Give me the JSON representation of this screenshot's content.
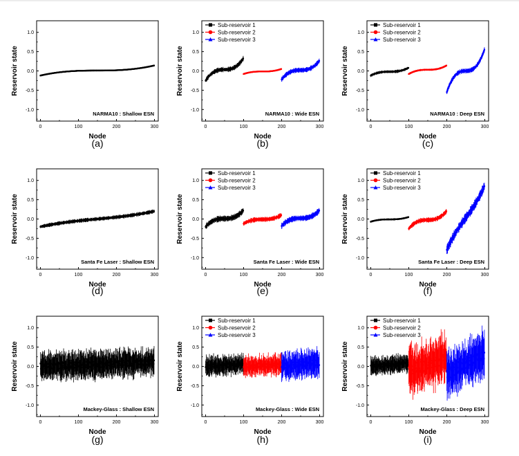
{
  "chart_data": [
    {
      "panel": "(a)",
      "type": "scatter",
      "title": "NARMA10 : Shallow ESN",
      "xlabel": "Node",
      "ylabel": "Reservoir state",
      "xlim": [
        -10,
        310
      ],
      "ylim": [
        -1.3,
        1.3
      ],
      "xticks": [
        0,
        100,
        200,
        300
      ],
      "yticks": [
        1.0,
        0.5,
        0.0,
        -0.5,
        -1.0
      ],
      "legend": [],
      "series": [
        {
          "name": "",
          "color": "#000000",
          "x_range": [
            0,
            299
          ],
          "y_start": -0.12,
          "y_end": 0.14,
          "curve": 1.0,
          "error": 0.015
        }
      ]
    },
    {
      "panel": "(b)",
      "type": "scatter",
      "title": "NARMA10 : Wide ESN",
      "xlabel": "Node",
      "ylabel": "Reservoir state",
      "xlim": [
        -10,
        310
      ],
      "ylim": [
        -1.3,
        1.3
      ],
      "xticks": [
        0,
        100,
        200,
        300
      ],
      "yticks": [
        1.0,
        0.5,
        0.0,
        -0.5,
        -1.0
      ],
      "legend": [
        "Sub-reservoir 1",
        "Sub-reservoir 2",
        "Sub-reservoir 3"
      ],
      "series": [
        {
          "name": "Sub-reservoir 1",
          "color": "#000000",
          "x_range": [
            0,
            99
          ],
          "y_start": -0.25,
          "y_end": 0.32,
          "curve": 1.0,
          "error": 0.05
        },
        {
          "name": "Sub-reservoir 2",
          "color": "#ff0000",
          "x_range": [
            100,
            199
          ],
          "y_start": -0.08,
          "y_end": 0.05,
          "curve": 1.0,
          "error": 0.015
        },
        {
          "name": "Sub-reservoir 3",
          "color": "#0000ff",
          "x_range": [
            200,
            299
          ],
          "y_start": -0.22,
          "y_end": 0.26,
          "curve": 1.0,
          "error": 0.05
        }
      ]
    },
    {
      "panel": "(c)",
      "type": "scatter",
      "title": "NARMA10 : Deep ESN",
      "xlabel": "Node",
      "ylabel": "Reservoir state",
      "xlim": [
        -10,
        310
      ],
      "ylim": [
        -1.3,
        1.3
      ],
      "xticks": [
        0,
        100,
        200,
        300
      ],
      "yticks": [
        1.0,
        0.5,
        0.0,
        -0.5,
        -1.0
      ],
      "legend": [
        "Sub-reservoir 1",
        "Sub-reservoir 2",
        "Sub-reservoir 3"
      ],
      "series": [
        {
          "name": "Sub-reservoir 1",
          "color": "#000000",
          "x_range": [
            0,
            99
          ],
          "y_start": -0.12,
          "y_end": 0.08,
          "curve": 1.0,
          "error": 0.03
        },
        {
          "name": "Sub-reservoir 2",
          "color": "#ff0000",
          "x_range": [
            100,
            199
          ],
          "y_start": -0.08,
          "y_end": 0.14,
          "curve": 1.0,
          "error": 0.02
        },
        {
          "name": "Sub-reservoir 3",
          "color": "#0000ff",
          "x_range": [
            200,
            299
          ],
          "y_start": -0.55,
          "y_end": 0.55,
          "curve": 1.0,
          "error": 0.05
        }
      ]
    },
    {
      "panel": "(d)",
      "type": "scatter",
      "title": "Santa Fe Laser : Shallow ESN",
      "xlabel": "Node",
      "ylabel": "Reservoir state",
      "xlim": [
        -10,
        310
      ],
      "ylim": [
        -1.3,
        1.3
      ],
      "xticks": [
        0,
        100,
        200,
        300
      ],
      "yticks": [
        1.0,
        0.5,
        0.0,
        -0.5,
        -1.0
      ],
      "legend": [],
      "series": [
        {
          "name": "",
          "color": "#000000",
          "x_range": [
            0,
            299
          ],
          "y_start": -0.2,
          "y_end": 0.2,
          "curve": 0.35,
          "error": 0.04
        }
      ]
    },
    {
      "panel": "(e)",
      "type": "scatter",
      "title": "Santa Fe Laser : Wide ESN",
      "xlabel": "Node",
      "ylabel": "Reservoir state",
      "xlim": [
        -10,
        310
      ],
      "ylim": [
        -1.3,
        1.3
      ],
      "xticks": [
        0,
        100,
        200,
        300
      ],
      "yticks": [
        1.0,
        0.5,
        0.0,
        -0.5,
        -1.0
      ],
      "legend": [
        "Sub-reservoir 1",
        "Sub-reservoir 2",
        "Sub-reservoir 3"
      ],
      "series": [
        {
          "name": "Sub-reservoir 1",
          "color": "#000000",
          "x_range": [
            0,
            99
          ],
          "y_start": -0.2,
          "y_end": 0.22,
          "curve": 1.0,
          "error": 0.06
        },
        {
          "name": "Sub-reservoir 2",
          "color": "#ff0000",
          "x_range": [
            100,
            199
          ],
          "y_start": -0.12,
          "y_end": 0.1,
          "curve": 1.0,
          "error": 0.05
        },
        {
          "name": "Sub-reservoir 3",
          "color": "#0000ff",
          "x_range": [
            200,
            299
          ],
          "y_start": -0.18,
          "y_end": 0.22,
          "curve": 1.0,
          "error": 0.06
        }
      ]
    },
    {
      "panel": "(f)",
      "type": "scatter",
      "title": "Santa Fe Laser : Deep ESN",
      "xlabel": "Node",
      "ylabel": "Reservoir state",
      "xlim": [
        -10,
        310
      ],
      "ylim": [
        -1.3,
        1.3
      ],
      "xticks": [
        0,
        100,
        200,
        300
      ],
      "yticks": [
        1.0,
        0.5,
        0.0,
        -0.5,
        -1.0
      ],
      "legend": [
        "Sub-reservoir 1",
        "Sub-reservoir 2",
        "Sub-reservoir 3"
      ],
      "series": [
        {
          "name": "Sub-reservoir 1",
          "color": "#000000",
          "x_range": [
            0,
            99
          ],
          "y_start": -0.07,
          "y_end": 0.05,
          "curve": 1.0,
          "error": 0.02
        },
        {
          "name": "Sub-reservoir 2",
          "color": "#ff0000",
          "x_range": [
            100,
            199
          ],
          "y_start": -0.25,
          "y_end": 0.2,
          "curve": 1.0,
          "error": 0.05
        },
        {
          "name": "Sub-reservoir 3",
          "color": "#0000ff",
          "x_range": [
            200,
            299
          ],
          "y_start": -0.8,
          "y_end": 0.85,
          "curve": 0.2,
          "error": 0.1
        }
      ]
    },
    {
      "panel": "(g)",
      "type": "scatter",
      "title": "Mackey-Glass : Shallow ESN",
      "xlabel": "Node",
      "ylabel": "Reservoir state",
      "xlim": [
        -10,
        310
      ],
      "ylim": [
        -1.3,
        1.3
      ],
      "xticks": [
        0,
        100,
        200,
        300
      ],
      "yticks": [
        1.0,
        0.5,
        0.0,
        -0.5,
        -1.0
      ],
      "legend": [],
      "series": [
        {
          "name": "",
          "color": "#000000",
          "x_range": [
            0,
            299
          ],
          "y_start": 0.0,
          "y_end": 0.1,
          "curve": 0.0,
          "error": 0.28,
          "scatter": 0.08
        }
      ]
    },
    {
      "panel": "(h)",
      "type": "scatter",
      "title": "Mackey-Glass : Wide ESN",
      "xlabel": "Node",
      "ylabel": "Reservoir state",
      "xlim": [
        -10,
        310
      ],
      "ylim": [
        -1.3,
        1.3
      ],
      "xticks": [
        0,
        100,
        200,
        300
      ],
      "yticks": [
        1.0,
        0.5,
        0.0,
        -0.5,
        -1.0
      ],
      "legend": [
        "Sub-reservoir 1",
        "Sub-reservoir 2",
        "Sub-reservoir 3"
      ],
      "series": [
        {
          "name": "Sub-reservoir 1",
          "color": "#000000",
          "x_range": [
            0,
            99
          ],
          "y_start": 0.0,
          "y_end": 0.05,
          "curve": 0.0,
          "error": 0.2,
          "scatter": 0.06
        },
        {
          "name": "Sub-reservoir 2",
          "color": "#ff0000",
          "x_range": [
            100,
            199
          ],
          "y_start": 0.0,
          "y_end": 0.05,
          "curve": 0.0,
          "error": 0.2,
          "scatter": 0.06
        },
        {
          "name": "Sub-reservoir 3",
          "color": "#0000ff",
          "x_range": [
            200,
            299
          ],
          "y_start": 0.0,
          "y_end": 0.1,
          "curve": 0.0,
          "error": 0.28,
          "scatter": 0.08
        }
      ]
    },
    {
      "panel": "(i)",
      "type": "scatter",
      "title": "Mackey-Glass : Deep ESN",
      "xlabel": "Node",
      "ylabel": "Reservoir state",
      "xlim": [
        -10,
        310
      ],
      "ylim": [
        -1.3,
        1.3
      ],
      "xticks": [
        0,
        100,
        200,
        300
      ],
      "yticks": [
        1.0,
        0.5,
        0.0,
        -0.5,
        -1.0
      ],
      "legend": [
        "Sub-reservoir 1",
        "Sub-reservoir 2",
        "Sub-reservoir 3"
      ],
      "series": [
        {
          "name": "Sub-reservoir 1",
          "color": "#000000",
          "x_range": [
            0,
            99
          ],
          "y_start": 0.0,
          "y_end": 0.08,
          "curve": 0.0,
          "error": 0.18,
          "scatter": 0.05
        },
        {
          "name": "Sub-reservoir 2",
          "color": "#ff0000",
          "x_range": [
            100,
            199
          ],
          "y_start": -0.1,
          "y_end": 0.2,
          "curve": 0.0,
          "error": 0.5,
          "scatter": 0.15
        },
        {
          "name": "Sub-reservoir 3",
          "color": "#0000ff",
          "x_range": [
            200,
            299
          ],
          "y_start": -0.2,
          "y_end": 0.35,
          "curve": 0.0,
          "error": 0.45,
          "scatter": 0.15
        }
      ]
    }
  ]
}
